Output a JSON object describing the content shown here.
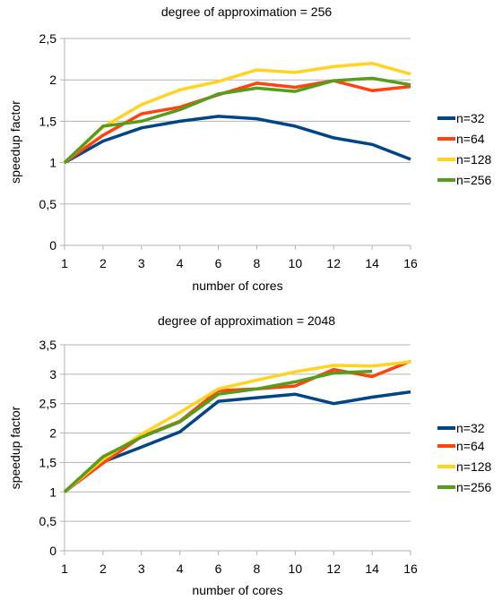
{
  "colors": {
    "n32": "#004586",
    "n64": "#ff420e",
    "n128": "#ffd320",
    "n256": "#579d1c",
    "grid": "#b3b3b3"
  },
  "chart_data": [
    {
      "type": "line",
      "title": "degree of approximation = 256",
      "xlabel": "number of cores",
      "ylabel": "speedup factor",
      "categories": [
        "1",
        "2",
        "3",
        "4",
        "6",
        "8",
        "10",
        "12",
        "14",
        "16"
      ],
      "ylim": [
        0,
        2.5
      ],
      "yticks": [
        "0",
        "0,5",
        "1",
        "1,5",
        "2",
        "2,5"
      ],
      "grid": true,
      "legend_position": "right",
      "series": [
        {
          "name": "n=32",
          "color_key": "n32",
          "values": [
            1.0,
            1.26,
            1.42,
            1.5,
            1.56,
            1.53,
            1.44,
            1.3,
            1.22,
            1.04
          ]
        },
        {
          "name": "n=64",
          "color_key": "n64",
          "values": [
            1.0,
            1.33,
            1.59,
            1.67,
            1.82,
            1.96,
            1.91,
            1.99,
            1.87,
            1.92
          ]
        },
        {
          "name": "n=128",
          "color_key": "n128",
          "values": [
            1.0,
            1.43,
            1.7,
            1.88,
            1.98,
            2.12,
            2.09,
            2.16,
            2.2,
            2.07
          ]
        },
        {
          "name": "n=256",
          "color_key": "n256",
          "values": [
            1.0,
            1.44,
            1.5,
            1.64,
            1.83,
            1.9,
            1.86,
            1.99,
            2.02,
            1.94
          ]
        }
      ]
    },
    {
      "type": "line",
      "title": "degree of approximation = 2048",
      "xlabel": "number of cores",
      "ylabel": "speedup factor",
      "categories": [
        "1",
        "2",
        "3",
        "4",
        "6",
        "8",
        "10",
        "12",
        "14",
        "16"
      ],
      "ylim": [
        0,
        3.5
      ],
      "yticks": [
        "0",
        "0,5",
        "1",
        "1,5",
        "2",
        "2,5",
        "3",
        "3,5"
      ],
      "grid": true,
      "legend_position": "right",
      "series": [
        {
          "name": "n=32",
          "color_key": "n32",
          "values": [
            1.0,
            1.51,
            1.76,
            2.02,
            2.54,
            2.6,
            2.66,
            2.5,
            2.61,
            2.7
          ]
        },
        {
          "name": "n=64",
          "color_key": "n64",
          "values": [
            1.0,
            1.49,
            1.94,
            2.2,
            2.72,
            2.75,
            2.8,
            3.08,
            2.96,
            3.22
          ]
        },
        {
          "name": "n=128",
          "color_key": "n128",
          "values": [
            1.0,
            1.55,
            1.98,
            2.35,
            2.75,
            2.9,
            3.04,
            3.15,
            3.14,
            3.21
          ]
        },
        {
          "name": "n=256",
          "color_key": "n256",
          "values": [
            1.0,
            1.6,
            1.93,
            2.19,
            2.66,
            2.75,
            2.87,
            3.02,
            3.05,
            null
          ]
        }
      ]
    }
  ]
}
